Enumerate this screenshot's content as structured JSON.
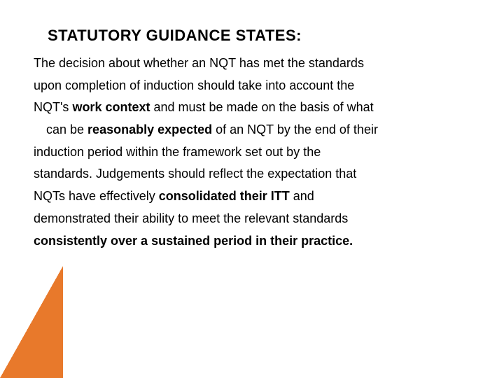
{
  "title": "STATUTORY GUIDANCE STATES:",
  "lines": {
    "l1": "The decision about whether an NQT has met the standards",
    "l2": "upon completion of induction should take into account the",
    "l3a": "NQT's ",
    "l3b": "work context",
    "l3c": " and must be made on the basis of what",
    "l4a": "can be ",
    "l4b": "reasonably expected",
    "l4c": " of an NQT by the end of their",
    "l5": "induction period within the framework set out by the",
    "l6": "standards. Judgements should reflect the expectation that",
    "l7a": "NQTs have effectively ",
    "l7b": "consolidated their ITT",
    "l7c": " and",
    "l8": "demonstrated their ability to meet the relevant standards",
    "l9a": "consistently",
    "l9b": " over a sustained period in their practice."
  },
  "colors": {
    "text": "#000000",
    "background": "#ffffff",
    "accent": "#e8792b"
  },
  "typography": {
    "title_fontsize": 22,
    "body_fontsize": 18,
    "font_family": "Arial"
  },
  "decoration": {
    "type": "corner-triangle",
    "position": "bottom-left",
    "color": "#e8792b",
    "width": 90,
    "height": 160
  }
}
